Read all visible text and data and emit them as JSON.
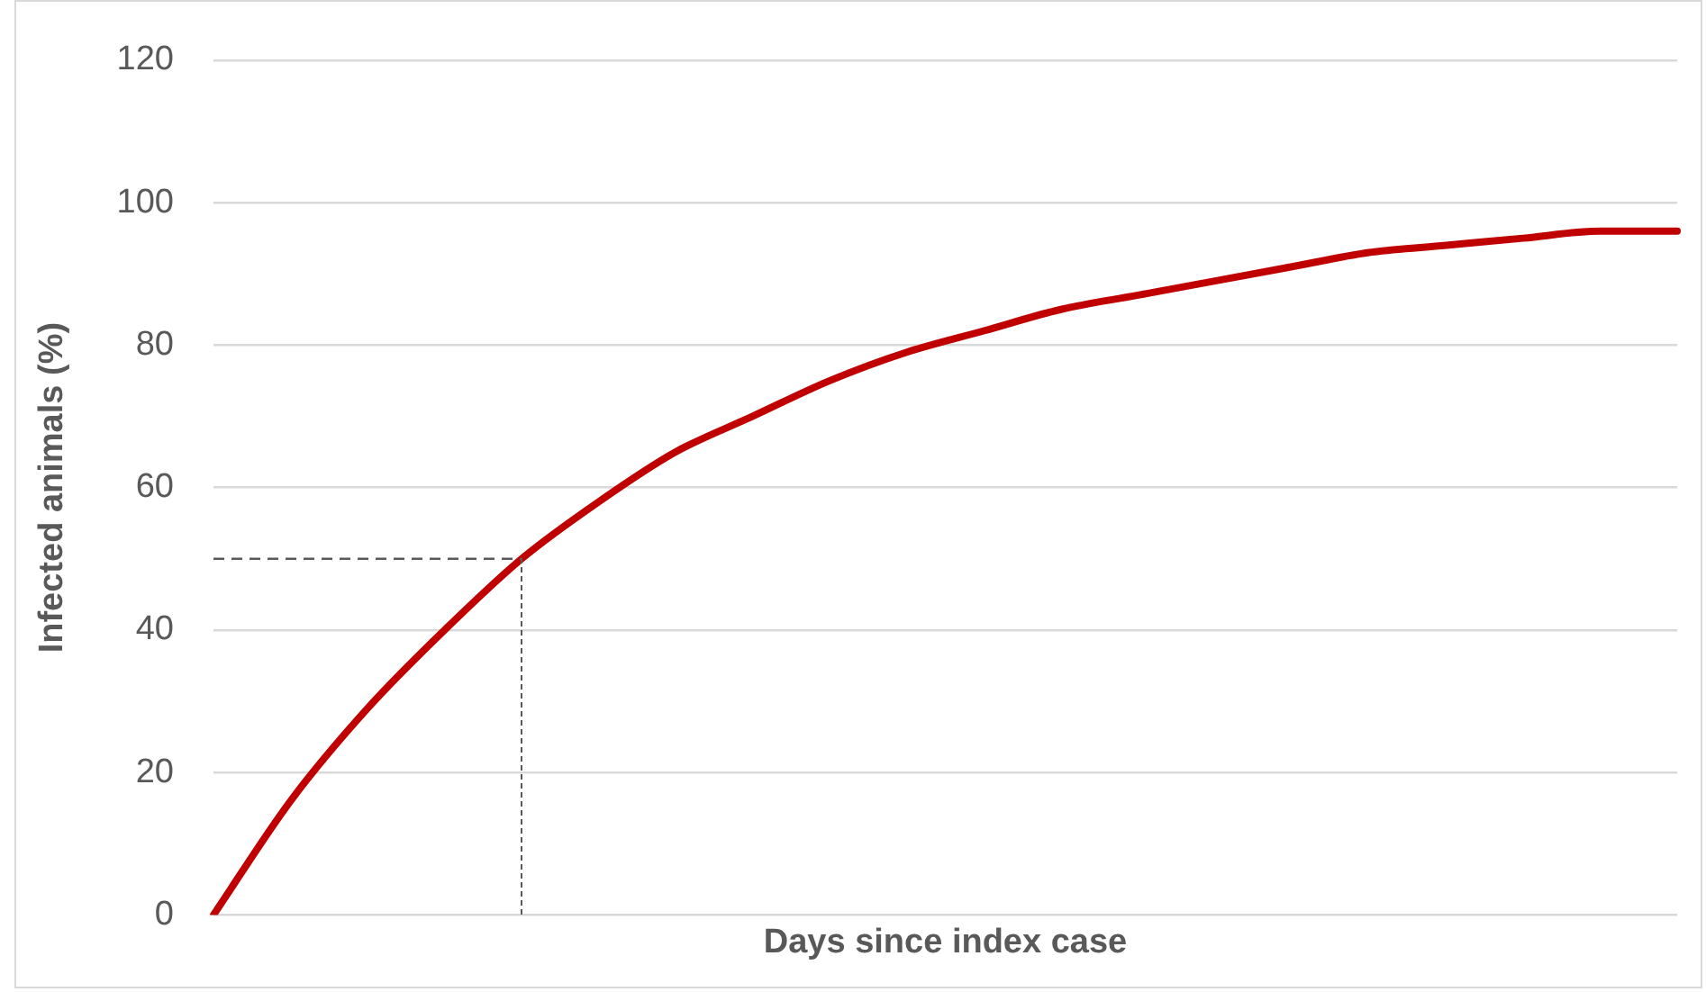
{
  "chart_data": {
    "type": "line",
    "xlabel": "Days since index case",
    "ylabel": "Infected animals (%)",
    "categories": [
      null,
      null,
      null,
      null,
      null,
      null,
      null,
      null,
      null,
      null,
      null,
      null,
      null,
      null,
      null,
      null,
      null,
      null,
      null,
      null
    ],
    "series": [
      {
        "color": "#c00000",
        "values": [
          0,
          16,
          29,
          40,
          50,
          58,
          65,
          70,
          75,
          79,
          82,
          85,
          87,
          89,
          91,
          93,
          94,
          95,
          96,
          96
        ]
      }
    ],
    "ylim": [
      0,
      120
    ],
    "yticks": [
      0,
      20,
      40,
      60,
      80,
      100,
      120
    ],
    "grid": "y",
    "legend": false,
    "marker": "none",
    "line_style": "solid",
    "tick_labels": "y",
    "ref_lines": [
      {
        "axis": "y",
        "value": 50,
        "color": "#595959",
        "line_style": "dashed"
      }
    ]
  }
}
